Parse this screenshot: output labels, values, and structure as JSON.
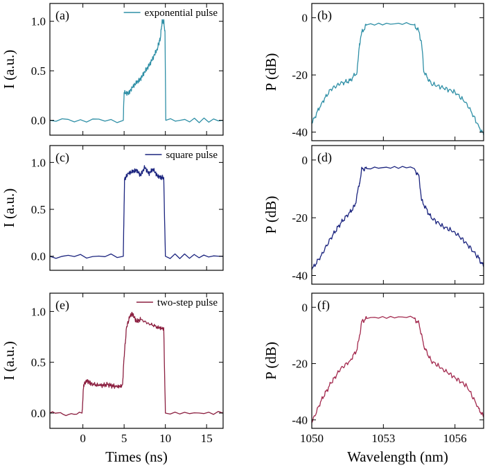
{
  "chart_data": [
    {
      "panel": "(a)",
      "type": "line",
      "color": "#2e8fa6",
      "legend": "exponential pulse",
      "ylabel": "I (a.u.)",
      "xlabel": "",
      "xlim": [
        -4,
        17
      ],
      "ylim": [
        -0.15,
        1.18
      ],
      "yticks": [
        0.0,
        0.5,
        1.0
      ],
      "ytick_labels": [
        "0.0",
        "0.5",
        "1.0"
      ],
      "xticks": [
        0,
        5,
        10,
        15
      ],
      "xtick_labels": [],
      "series": [
        {
          "values": [
            [
              -4,
              0.0
            ],
            [
              4.9,
              0.0
            ],
            [
              5.0,
              0.28
            ],
            [
              5.5,
              0.27
            ],
            [
              6.0,
              0.33
            ],
            [
              6.5,
              0.38
            ],
            [
              7.0,
              0.42
            ],
            [
              7.5,
              0.49
            ],
            [
              8.0,
              0.55
            ],
            [
              8.5,
              0.63
            ],
            [
              9.0,
              0.72
            ],
            [
              9.4,
              0.83
            ],
            [
              9.6,
              1.0
            ],
            [
              9.8,
              1.0
            ],
            [
              9.95,
              0.9
            ],
            [
              10.05,
              0.0
            ],
            [
              17,
              0.0
            ]
          ]
        }
      ]
    },
    {
      "panel": "(b)",
      "type": "line",
      "color": "#2e8fa6",
      "ylabel": "P (dB)",
      "xlabel": "",
      "xlim": [
        1050,
        1057.2
      ],
      "ylim": [
        -43,
        5
      ],
      "yticks": [
        0,
        -20,
        -40
      ],
      "ytick_labels": [
        "0",
        "-20",
        "-40"
      ],
      "xticks": [
        1050,
        1053,
        1056
      ],
      "xtick_labels": [],
      "series": [
        {
          "values": [
            [
              1050,
              -37
            ],
            [
              1050.4,
              -30
            ],
            [
              1050.8,
              -25
            ],
            [
              1051.2,
              -23
            ],
            [
              1051.6,
              -22
            ],
            [
              1051.9,
              -19
            ],
            [
              1052.0,
              -9
            ],
            [
              1052.1,
              -5
            ],
            [
              1052.3,
              -2.5
            ],
            [
              1054.3,
              -2.5
            ],
            [
              1054.5,
              -5
            ],
            [
              1054.6,
              -9
            ],
            [
              1054.7,
              -19
            ],
            [
              1055.0,
              -23
            ],
            [
              1055.5,
              -24.5
            ],
            [
              1056.0,
              -26
            ],
            [
              1056.5,
              -30
            ],
            [
              1057.0,
              -38
            ],
            [
              1057.2,
              -41
            ]
          ]
        }
      ]
    },
    {
      "panel": "(c)",
      "type": "line",
      "color": "#1a237e",
      "legend": "square pulse",
      "ylabel": "I (a.u.)",
      "xlabel": "",
      "xlim": [
        -4,
        17
      ],
      "ylim": [
        -0.15,
        1.18
      ],
      "yticks": [
        0.0,
        0.5,
        1.0
      ],
      "ytick_labels": [
        "0.0",
        "0.5",
        "1.0"
      ],
      "xticks": [
        0,
        5,
        10,
        15
      ],
      "xtick_labels": [],
      "series": [
        {
          "values": [
            [
              -4,
              0.0
            ],
            [
              4.9,
              0.0
            ],
            [
              5.05,
              0.82
            ],
            [
              5.5,
              0.88
            ],
            [
              6.0,
              0.9
            ],
            [
              6.5,
              0.92
            ],
            [
              7.0,
              0.86
            ],
            [
              7.5,
              0.95
            ],
            [
              8.0,
              0.88
            ],
            [
              8.5,
              0.93
            ],
            [
              9.0,
              0.86
            ],
            [
              9.5,
              0.84
            ],
            [
              9.8,
              0.84
            ],
            [
              10.0,
              0.0
            ],
            [
              17,
              0.0
            ]
          ]
        }
      ]
    },
    {
      "panel": "(d)",
      "type": "line",
      "color": "#1a237e",
      "ylabel": "P (dB)",
      "xlabel": "",
      "xlim": [
        1050,
        1057.2
      ],
      "ylim": [
        -43,
        5
      ],
      "yticks": [
        0,
        -20,
        -40
      ],
      "ytick_labels": [
        "0",
        "-20",
        "-40"
      ],
      "xticks": [
        1050,
        1053,
        1056
      ],
      "xtick_labels": [],
      "series": [
        {
          "values": [
            [
              1050,
              -38
            ],
            [
              1050.4,
              -33
            ],
            [
              1050.8,
              -27
            ],
            [
              1051.2,
              -22
            ],
            [
              1051.6,
              -18
            ],
            [
              1051.8,
              -16
            ],
            [
              1052.0,
              -8
            ],
            [
              1052.1,
              -3
            ],
            [
              1052.3,
              -3
            ],
            [
              1054.3,
              -3
            ],
            [
              1054.5,
              -6
            ],
            [
              1054.6,
              -14
            ],
            [
              1055.0,
              -20
            ],
            [
              1055.5,
              -23
            ],
            [
              1056.0,
              -25
            ],
            [
              1056.5,
              -29
            ],
            [
              1057.0,
              -34
            ],
            [
              1057.2,
              -37
            ]
          ]
        }
      ]
    },
    {
      "panel": "(e)",
      "type": "line",
      "color": "#8b1e3f",
      "legend": "two-step pulse",
      "ylabel": "I (a.u.)",
      "xlabel": "Times (ns)",
      "xlim": [
        -4,
        17
      ],
      "ylim": [
        -0.15,
        1.18
      ],
      "yticks": [
        0.0,
        0.5,
        1.0
      ],
      "ytick_labels": [
        "0.0",
        "0.5",
        "1.0"
      ],
      "xticks": [
        0,
        5,
        10,
        15
      ],
      "xtick_labels": [
        "0",
        "5",
        "10",
        "15"
      ],
      "series": [
        {
          "values": [
            [
              -4,
              0.0
            ],
            [
              -0.1,
              0.0
            ],
            [
              0.1,
              0.28
            ],
            [
              0.5,
              0.32
            ],
            [
              1.0,
              0.29
            ],
            [
              2.0,
              0.27
            ],
            [
              3.0,
              0.28
            ],
            [
              4.0,
              0.26
            ],
            [
              4.8,
              0.28
            ],
            [
              5.0,
              0.55
            ],
            [
              5.3,
              0.85
            ],
            [
              5.7,
              0.95
            ],
            [
              6.0,
              0.98
            ],
            [
              6.5,
              0.9
            ],
            [
              7.0,
              0.92
            ],
            [
              8.0,
              0.88
            ],
            [
              9.0,
              0.85
            ],
            [
              9.8,
              0.84
            ],
            [
              10.0,
              0.0
            ],
            [
              17,
              0.0
            ]
          ]
        }
      ]
    },
    {
      "panel": "(f)",
      "type": "line",
      "color": "#a3294e",
      "ylabel": "P (dB)",
      "xlabel": "Wavelength (nm)",
      "xlim": [
        1050,
        1057.2
      ],
      "ylim": [
        -43,
        5
      ],
      "yticks": [
        0,
        -20,
        -40
      ],
      "ytick_labels": [
        "0",
        "-20",
        "-40"
      ],
      "xticks": [
        1050,
        1053,
        1056
      ],
      "xtick_labels": [
        "1050",
        "1053",
        "1056"
      ],
      "series": [
        {
          "values": [
            [
              1050,
              -41
            ],
            [
              1050.4,
              -33
            ],
            [
              1050.8,
              -27
            ],
            [
              1051.2,
              -22
            ],
            [
              1051.6,
              -19
            ],
            [
              1051.9,
              -15
            ],
            [
              1052.0,
              -10
            ],
            [
              1052.1,
              -5
            ],
            [
              1052.3,
              -4
            ],
            [
              1054.3,
              -4
            ],
            [
              1054.5,
              -6
            ],
            [
              1054.7,
              -14
            ],
            [
              1055.0,
              -19
            ],
            [
              1055.5,
              -22
            ],
            [
              1056.0,
              -25
            ],
            [
              1056.5,
              -28
            ],
            [
              1057.0,
              -36
            ],
            [
              1057.2,
              -39
            ]
          ]
        }
      ]
    }
  ]
}
